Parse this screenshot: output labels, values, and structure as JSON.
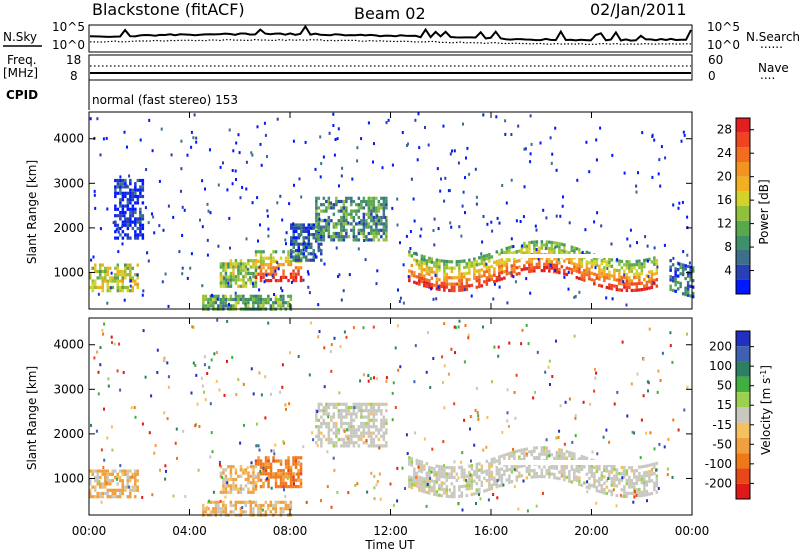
{
  "header": {
    "station": "Blackstone (fitACF)",
    "beam": "Beam 02",
    "date": "02/Jan/2011"
  },
  "status_panel": {
    "nsky_label": "N.Sky",
    "nsearch_label": "N.Search",
    "noise_ticks_left": [
      "10^5",
      "10^0"
    ],
    "noise_ticks_right": [
      "10^5",
      "10^0"
    ],
    "freq_label": "Freq.",
    "freq_unit": "[MHz]",
    "freq_ticks": [
      "18",
      "8"
    ],
    "nave_label": "Nave",
    "nave_ticks": [
      "60",
      "0"
    ],
    "cpid_label": "CPID",
    "cpid_text": "normal (fast stereo) 153",
    "line_legend_dotted": "......",
    "line_legend_dots_short": "...."
  },
  "chart_data": [
    {
      "type": "heatmap",
      "name": "power",
      "ylabel": "Slant Range [km]",
      "xlabel": "",
      "x_ticks": [
        "00:00",
        "04:00",
        "08:00",
        "12:00",
        "16:00",
        "20:00",
        "00:00"
      ],
      "y_ticks": [
        1000,
        2000,
        3000,
        4000
      ],
      "ylim": [
        180,
        4600
      ],
      "xlim_hours": [
        0,
        24
      ],
      "colorbar": {
        "label": "Power [dB]",
        "ticks": [
          4,
          8,
          12,
          16,
          20,
          24,
          28
        ],
        "range": [
          0,
          30
        ],
        "colors": [
          "#0018ff",
          "#2a3fb5",
          "#3d6f8a",
          "#3f8f6a",
          "#59a84b",
          "#8fc23a",
          "#d3d22a",
          "#f0b020",
          "#f39420",
          "#f26d1f",
          "#ee4520",
          "#e41e1e"
        ]
      },
      "regions": [
        {
          "t0": 0.0,
          "t1": 1.9,
          "r0": 600,
          "r1": 1200,
          "level": 0.5
        },
        {
          "t0": 1.0,
          "t1": 2.1,
          "r0": 1800,
          "r1": 3100,
          "level": 0.05
        },
        {
          "t0": 5.2,
          "t1": 6.6,
          "r0": 700,
          "r1": 1300,
          "level": 0.45
        },
        {
          "t0": 6.6,
          "t1": 8.4,
          "r0": 850,
          "r1": 1500,
          "level": 0.65
        },
        {
          "t0": 8.0,
          "t1": 9.2,
          "r0": 1300,
          "r1": 2100,
          "level": 0.15
        },
        {
          "t0": 9.0,
          "t1": 11.8,
          "r0": 1700,
          "r1": 2700,
          "level": 0.3
        },
        {
          "t0": 12.7,
          "t1": 22.6,
          "r0": 800,
          "r1": 1500,
          "level": 0.7
        },
        {
          "t0": 4.5,
          "t1": 8.0,
          "r0": 200,
          "r1": 500,
          "level": 0.35
        },
        {
          "t0": 23.1,
          "t1": 24.0,
          "r0": 600,
          "r1": 1300,
          "level": 0.2
        }
      ]
    },
    {
      "type": "heatmap",
      "name": "velocity",
      "ylabel": "Slant Range [km]",
      "xlabel": "Time UT",
      "x_ticks": [
        "00:00",
        "04:00",
        "08:00",
        "12:00",
        "16:00",
        "20:00",
        "00:00"
      ],
      "y_ticks": [
        1000,
        2000,
        3000,
        4000
      ],
      "ylim": [
        180,
        4600
      ],
      "xlim_hours": [
        0,
        24
      ],
      "colorbar": {
        "label": "Velocity [m s",
        "label_sup": "-1",
        "label_close": "]",
        "ticks": [
          "200",
          "100",
          "50",
          "15",
          "-15",
          "-50",
          "-100",
          "-200"
        ],
        "colors": [
          "#2030c0",
          "#4060b0",
          "#2c8060",
          "#3fb040",
          "#9ed050",
          "#c8c8c0",
          "#f5c060",
          "#f0a040",
          "#f07818",
          "#e84818",
          "#e01818"
        ]
      },
      "regions": [
        {
          "t0": 0.0,
          "t1": 1.9,
          "r0": 600,
          "r1": 1200,
          "kind": "neg"
        },
        {
          "t0": 6.6,
          "t1": 8.4,
          "r0": 850,
          "r1": 1500,
          "kind": "neg_strong"
        },
        {
          "t0": 5.2,
          "t1": 6.6,
          "r0": 700,
          "r1": 1300,
          "kind": "neg"
        },
        {
          "t0": 9.0,
          "t1": 11.8,
          "r0": 1700,
          "r1": 2700,
          "kind": "gray"
        },
        {
          "t0": 12.7,
          "t1": 22.6,
          "r0": 800,
          "r1": 1500,
          "kind": "gray"
        },
        {
          "t0": 4.5,
          "t1": 8.0,
          "r0": 200,
          "r1": 500,
          "kind": "neg"
        }
      ]
    }
  ]
}
